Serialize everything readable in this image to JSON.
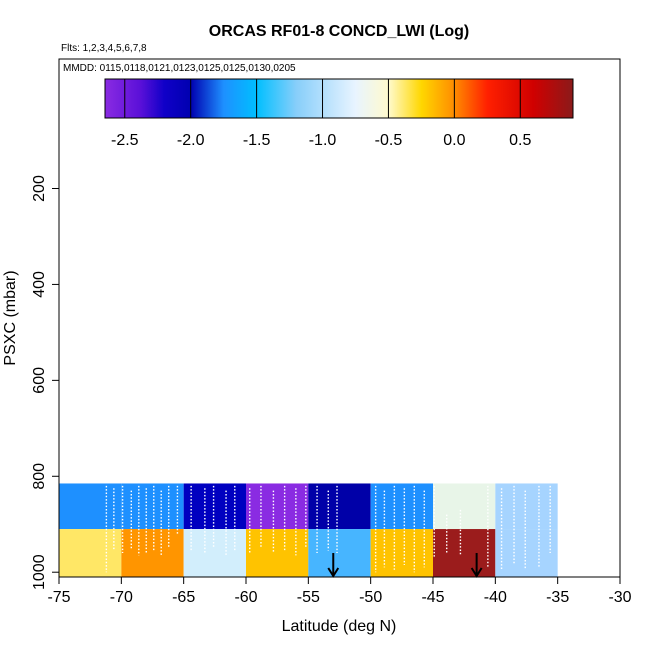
{
  "chart_data": {
    "type": "heatmap",
    "title": "ORCAS RF01-8 CONCD_LWI (Log)",
    "subtitle_flights": "Flts: 1,2,3,4,5,6,7,8",
    "subtitle_dates": "MMDD: 0115,0118,0121,0123,0125,0125,0130,0205",
    "xlabel": "Latitude (deg N)",
    "ylabel": "PSXC (mbar)",
    "xlim": [
      -75,
      -30
    ],
    "ylim": [
      1010,
      -70
    ],
    "x_ticks": [
      -75,
      -70,
      -65,
      -60,
      -55,
      -50,
      -45,
      -40,
      -35,
      -30
    ],
    "y_ticks": [
      200,
      400,
      600,
      800,
      1000
    ],
    "colorbar": {
      "range": [
        -2.65,
        0.9
      ],
      "tick_values": [
        -2.5,
        -2.0,
        -1.5,
        -1.0,
        -0.5,
        0.0,
        0.5
      ],
      "tick_labels": [
        "-2.5",
        "-2.0",
        "-1.5",
        "-1.0",
        "-0.5",
        "0.0",
        "0.5"
      ],
      "stops": [
        {
          "v": -2.65,
          "color": "#8a2be2"
        },
        {
          "v": -2.38,
          "color": "#5a10d8"
        },
        {
          "v": -2.2,
          "color": "#1000c8"
        },
        {
          "v": -2.0,
          "color": "#0000b0"
        },
        {
          "v": -1.75,
          "color": "#1e90ff"
        },
        {
          "v": -1.5,
          "color": "#00bfff"
        },
        {
          "v": -1.2,
          "color": "#87cefa"
        },
        {
          "v": -0.75,
          "color": "#e8f4ff"
        },
        {
          "v": -0.5,
          "color": "#fffacd"
        },
        {
          "v": -0.25,
          "color": "#ffd700"
        },
        {
          "v": 0.0,
          "color": "#ff8c00"
        },
        {
          "v": 0.25,
          "color": "#ff2000"
        },
        {
          "v": 0.6,
          "color": "#d00000"
        },
        {
          "v": 0.9,
          "color": "#8b1a1a"
        }
      ]
    },
    "cells": [
      {
        "lat_range": [
          -75,
          -70
        ],
        "p_range": [
          815,
          910
        ],
        "color": "#1e90ff"
      },
      {
        "lat_range": [
          -70,
          -65
        ],
        "p_range": [
          815,
          910
        ],
        "color": "#1e90ff"
      },
      {
        "lat_range": [
          -65,
          -60
        ],
        "p_range": [
          815,
          910
        ],
        "color": "#0000c0"
      },
      {
        "lat_range": [
          -60,
          -55
        ],
        "p_range": [
          815,
          910
        ],
        "color": "#8a2be2"
      },
      {
        "lat_range": [
          -55,
          -50
        ],
        "p_range": [
          815,
          910
        ],
        "color": "#0000a8"
      },
      {
        "lat_range": [
          -50,
          -45
        ],
        "p_range": [
          815,
          910
        ],
        "color": "#1e90ff"
      },
      {
        "lat_range": [
          -45,
          -40
        ],
        "p_range": [
          815,
          910
        ],
        "color": "#e8f5e8"
      },
      {
        "lat_range": [
          -40,
          -35
        ],
        "p_range": [
          815,
          910
        ],
        "color": "#a6d4ff"
      },
      {
        "lat_range": [
          -75,
          -70
        ],
        "p_range": [
          910,
          1010
        ],
        "color": "#ffe766"
      },
      {
        "lat_range": [
          -70,
          -65
        ],
        "p_range": [
          910,
          1010
        ],
        "color": "#ff9500"
      },
      {
        "lat_range": [
          -65,
          -60
        ],
        "p_range": [
          910,
          1010
        ],
        "color": "#d2eefc"
      },
      {
        "lat_range": [
          -60,
          -55
        ],
        "p_range": [
          910,
          1010
        ],
        "color": "#ffc300"
      },
      {
        "lat_range": [
          -55,
          -50
        ],
        "p_range": [
          910,
          1010
        ],
        "color": "#47b5ff"
      },
      {
        "lat_range": [
          -50,
          -45
        ],
        "p_range": [
          910,
          1010
        ],
        "color": "#ffc300"
      },
      {
        "lat_range": [
          -45,
          -40
        ],
        "p_range": [
          910,
          1010
        ],
        "color": "#9b1c1c"
      },
      {
        "lat_range": [
          -40,
          -35
        ],
        "p_range": [
          910,
          1010
        ],
        "color": "#a6d4ff"
      }
    ],
    "arrows": [
      {
        "lat": -53,
        "p_from": 960,
        "p_to": 1010
      },
      {
        "lat": -41.5,
        "p_from": 960,
        "p_to": 1010
      }
    ],
    "flight_tracks": [
      {
        "lat": -71.2,
        "top": 820,
        "bottom": 1000
      },
      {
        "lat": -70.6,
        "top": 825,
        "bottom": 955
      },
      {
        "lat": -69.9,
        "top": 820,
        "bottom": 960
      },
      {
        "lat": -69.2,
        "top": 830,
        "bottom": 950
      },
      {
        "lat": -68.6,
        "top": 820,
        "bottom": 965
      },
      {
        "lat": -68.0,
        "top": 825,
        "bottom": 960
      },
      {
        "lat": -67.4,
        "top": 820,
        "bottom": 955
      },
      {
        "lat": -66.8,
        "top": 830,
        "bottom": 965
      },
      {
        "lat": -66.2,
        "top": 820,
        "bottom": 950
      },
      {
        "lat": -65.5,
        "top": 820,
        "bottom": 920
      },
      {
        "lat": -64.4,
        "top": 820,
        "bottom": 955
      },
      {
        "lat": -63.3,
        "top": 825,
        "bottom": 960
      },
      {
        "lat": -62.6,
        "top": 820,
        "bottom": 950
      },
      {
        "lat": -61.6,
        "top": 830,
        "bottom": 965
      },
      {
        "lat": -60.9,
        "top": 820,
        "bottom": 955
      },
      {
        "lat": -59.7,
        "top": 825,
        "bottom": 960
      },
      {
        "lat": -58.8,
        "top": 820,
        "bottom": 950
      },
      {
        "lat": -57.8,
        "top": 830,
        "bottom": 960
      },
      {
        "lat": -56.9,
        "top": 820,
        "bottom": 955
      },
      {
        "lat": -56.0,
        "top": 825,
        "bottom": 965
      },
      {
        "lat": -55.2,
        "top": 820,
        "bottom": 950
      },
      {
        "lat": -54.3,
        "top": 820,
        "bottom": 960
      },
      {
        "lat": -53.4,
        "top": 830,
        "bottom": 955
      },
      {
        "lat": -52.7,
        "top": 820,
        "bottom": 960
      },
      {
        "lat": -49.6,
        "top": 820,
        "bottom": 1000
      },
      {
        "lat": -48.9,
        "top": 830,
        "bottom": 990
      },
      {
        "lat": -48.1,
        "top": 820,
        "bottom": 995
      },
      {
        "lat": -47.3,
        "top": 825,
        "bottom": 985
      },
      {
        "lat": -46.5,
        "top": 820,
        "bottom": 1000
      },
      {
        "lat": -45.7,
        "top": 830,
        "bottom": 990
      },
      {
        "lat": -44.9,
        "top": 820,
        "bottom": 970
      },
      {
        "lat": -43.9,
        "top": 880,
        "bottom": 960
      },
      {
        "lat": -42.8,
        "top": 870,
        "bottom": 965
      },
      {
        "lat": -40.6,
        "top": 820,
        "bottom": 990
      },
      {
        "lat": -39.5,
        "top": 825,
        "bottom": 995
      },
      {
        "lat": -38.5,
        "top": 820,
        "bottom": 985
      },
      {
        "lat": -37.6,
        "top": 830,
        "bottom": 995
      },
      {
        "lat": -36.5,
        "top": 820,
        "bottom": 990
      },
      {
        "lat": -35.6,
        "top": 820,
        "bottom": 960
      }
    ]
  }
}
